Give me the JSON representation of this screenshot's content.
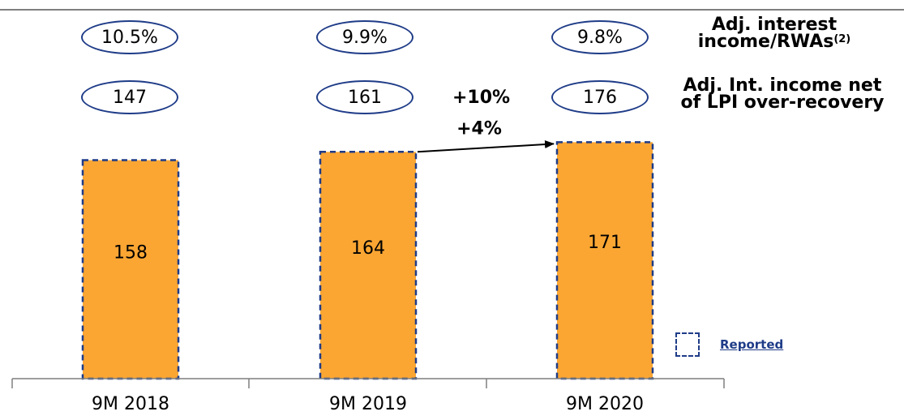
{
  "metric_rows": [
    {
      "values": [
        "10.5%",
        "9.9%",
        "9.8%"
      ],
      "label_line1": "Adj. interest",
      "label_line2": "income/RWAs",
      "label_sup": "(2)",
      "growth": ""
    },
    {
      "values": [
        "147",
        "161",
        "176"
      ],
      "label_line1": "Adj. Int. income net",
      "label_line2": "of LPI over-recovery",
      "label_sup": "",
      "growth": "+10%"
    }
  ],
  "chart_data": {
    "type": "bar",
    "categories": [
      "9M 2018",
      "9M 2019",
      "9M 2020"
    ],
    "values": [
      158,
      164,
      171
    ],
    "data_labels": [
      "158",
      "164",
      "171"
    ],
    "ylim": [
      0,
      180
    ],
    "bar_color": "#FBA633",
    "bar_border": "dashed navy",
    "growth_annotation": {
      "text": "+4%",
      "from": "9M 2019",
      "to": "9M 2020"
    },
    "legend": {
      "label": "Reported",
      "placement": "bottom-right"
    },
    "grid": false
  },
  "colors": {
    "bar": "#FBA633",
    "outline": "#1f3c88",
    "axis": "#7f7f7f"
  }
}
